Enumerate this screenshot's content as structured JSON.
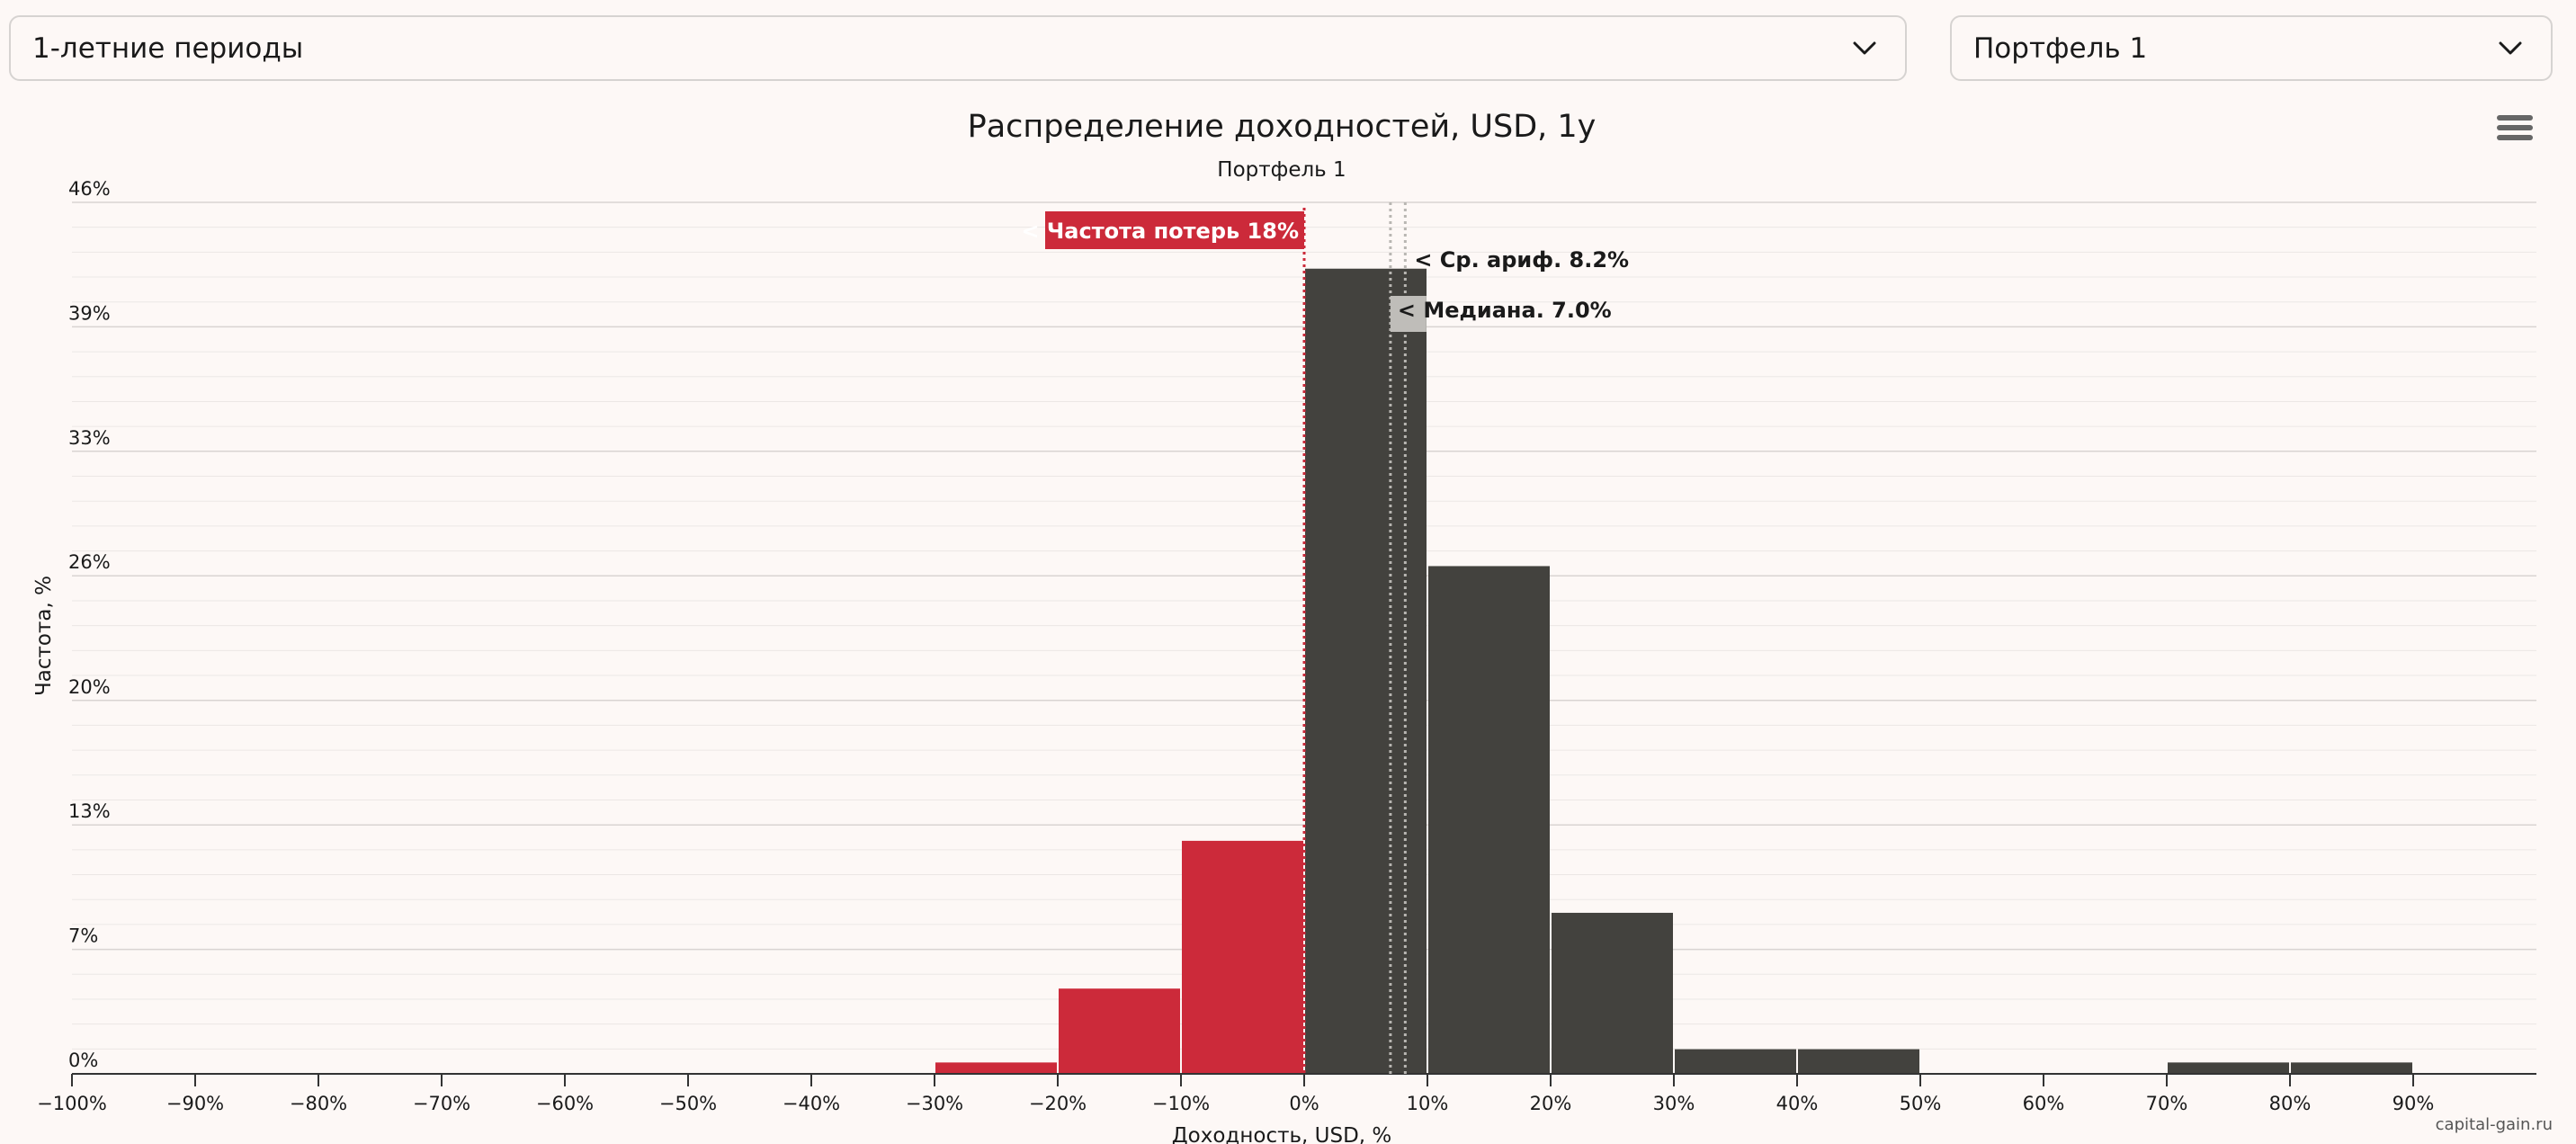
{
  "controls": {
    "period_select": "1-летние периоды",
    "portfolio_select": "Портфель 1"
  },
  "icons": {
    "dropdown": "chevron-down-icon",
    "menu": "hamburger-menu-icon"
  },
  "colors": {
    "loss": "#cc2a3a",
    "gain": "#43423e",
    "background": "#fdf8f6"
  },
  "credit": "capital-gain.ru",
  "chart_data": {
    "type": "bar",
    "title": "Распределение доходностей, USD, 1y",
    "subtitle": "Портфель 1",
    "xlabel": "Доходность, USD, %",
    "ylabel": "Частота, %",
    "xlim": [
      -100,
      100
    ],
    "ylim": [
      0,
      46
    ],
    "x_ticks": [
      -100,
      -90,
      -80,
      -70,
      -60,
      -50,
      -40,
      -30,
      -20,
      -10,
      0,
      10,
      20,
      30,
      40,
      50,
      60,
      70,
      80,
      90
    ],
    "x_tick_labels": [
      "−100%",
      "−90%",
      "−80%",
      "−70%",
      "−60%",
      "−50%",
      "−40%",
      "−30%",
      "−20%",
      "−10%",
      "0%",
      "10%",
      "20%",
      "30%",
      "40%",
      "50%",
      "60%",
      "70%",
      "80%",
      "90%"
    ],
    "y_ticks": [
      0,
      6.57,
      13.14,
      19.71,
      26.29,
      32.86,
      39.43,
      46
    ],
    "y_tick_labels": [
      "0%",
      "7%",
      "13%",
      "20%",
      "26%",
      "33%",
      "39%",
      "46%"
    ],
    "grid": true,
    "legend": "none",
    "bins": [
      {
        "from": -30,
        "to": -20,
        "value": 0.6,
        "kind": "loss"
      },
      {
        "from": -20,
        "to": -10,
        "value": 4.5,
        "kind": "loss"
      },
      {
        "from": -10,
        "to": 0,
        "value": 12.3,
        "kind": "loss"
      },
      {
        "from": 0,
        "to": 10,
        "value": 42.5,
        "kind": "gain"
      },
      {
        "from": 10,
        "to": 20,
        "value": 26.8,
        "kind": "gain"
      },
      {
        "from": 20,
        "to": 30,
        "value": 8.5,
        "kind": "gain"
      },
      {
        "from": 30,
        "to": 40,
        "value": 1.3,
        "kind": "gain"
      },
      {
        "from": 40,
        "to": 50,
        "value": 1.3,
        "kind": "gain"
      },
      {
        "from": 70,
        "to": 80,
        "value": 0.6,
        "kind": "gain"
      },
      {
        "from": 80,
        "to": 90,
        "value": 0.6,
        "kind": "gain"
      }
    ],
    "annotations": [
      {
        "label": "< Частота потерь 18%",
        "x": 0,
        "style": "loss"
      },
      {
        "label": "< Ср. ариф. 8.2%",
        "x": 8.2,
        "style": "dark"
      },
      {
        "label": "< Медиана. 7.0%",
        "x": 7.0,
        "style": "grey"
      }
    ]
  }
}
